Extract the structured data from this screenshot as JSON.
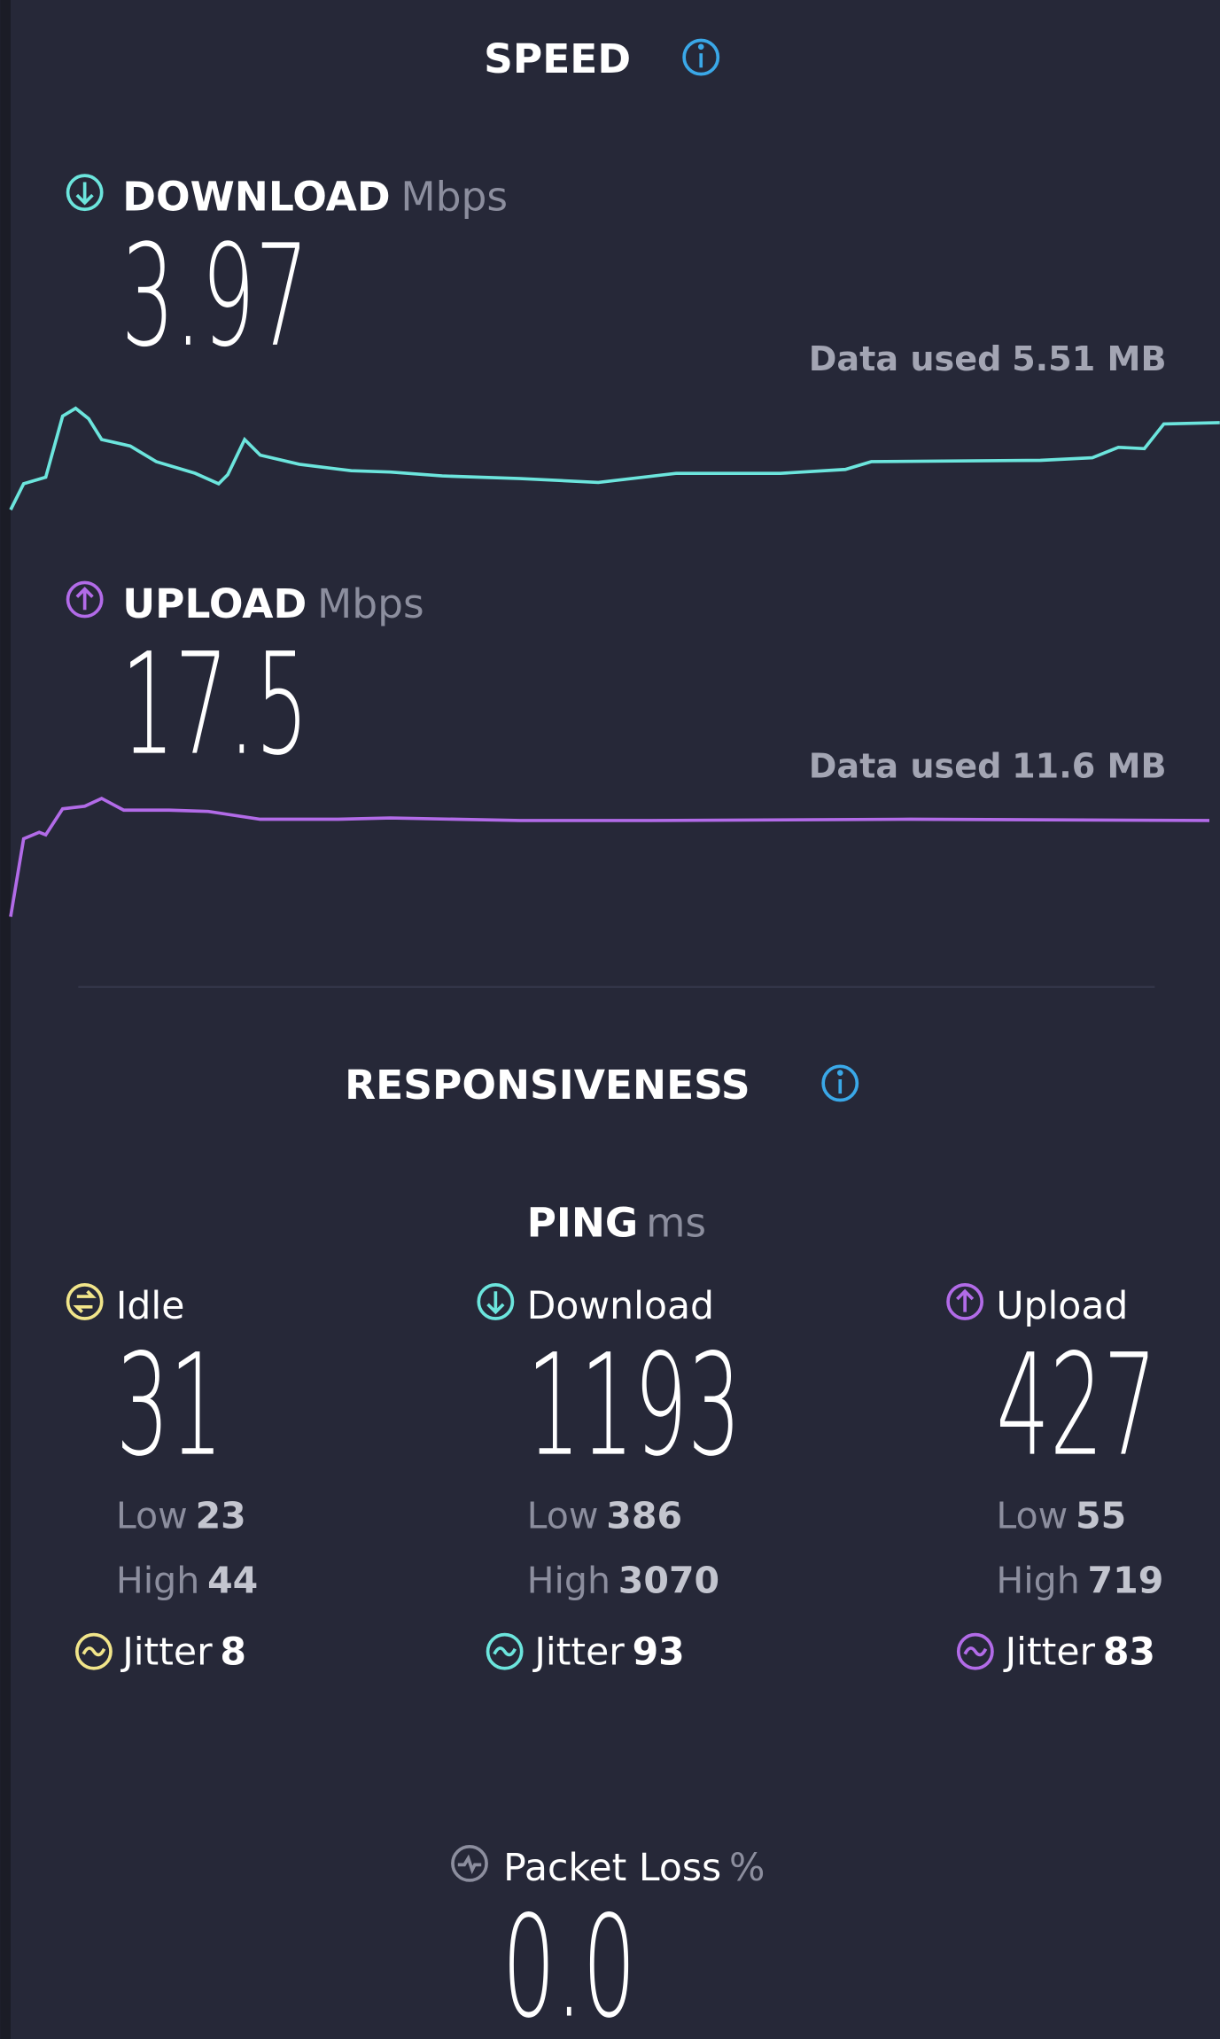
{
  "speed": {
    "title": "SPEED",
    "download": {
      "label": "DOWNLOAD",
      "unit": "Mbps",
      "value": "3.97",
      "data_used_label": "Data used",
      "data_used": "5.51 MB"
    },
    "upload": {
      "label": "UPLOAD",
      "unit": "Mbps",
      "value": "17.5",
      "data_used_label": "Data used",
      "data_used": "11.6 MB"
    }
  },
  "responsiveness": {
    "title": "RESPONSIVENESS",
    "ping": {
      "label": "PING",
      "unit": "ms",
      "columns": [
        {
          "label": "Idle",
          "value": "31",
          "low_label": "Low",
          "low": "23",
          "high_label": "High",
          "high": "44",
          "jitter_label": "Jitter",
          "jitter": "8"
        },
        {
          "label": "Download",
          "value": "1193",
          "low_label": "Low",
          "low": "386",
          "high_label": "High",
          "high": "3070",
          "jitter_label": "Jitter",
          "jitter": "93"
        },
        {
          "label": "Upload",
          "value": "427",
          "low_label": "Low",
          "low": "55",
          "high_label": "High",
          "high": "719",
          "jitter_label": "Jitter",
          "jitter": "83"
        }
      ]
    }
  },
  "packet_loss": {
    "label": "Packet Loss",
    "unit": "%",
    "value": "0.0"
  }
}
